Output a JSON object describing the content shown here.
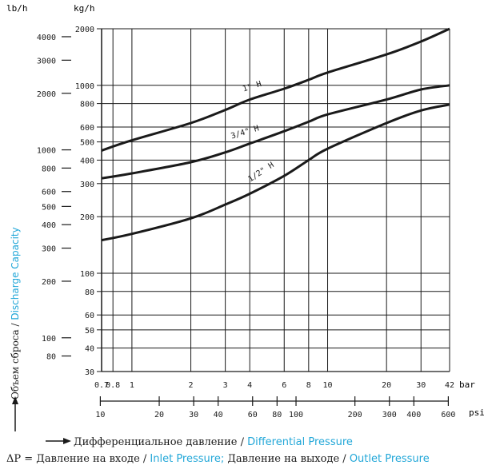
{
  "chart_data": {
    "type": "line",
    "title": "",
    "x_scale": "log",
    "y_scale": "log",
    "xlim": [
      0.7,
      42
    ],
    "ylim": [
      30,
      2000
    ],
    "grid": true,
    "unit_labels": {
      "y_left": "lb/h",
      "y_right": "kg/h",
      "x_top": "bar",
      "x_bottom": "psi"
    },
    "y_kg_ticks": [
      "2000",
      "1000",
      "800",
      "600",
      "500",
      "400",
      "300",
      "200",
      "100",
      "80",
      "60",
      "50",
      "40",
      "30"
    ],
    "y_kg_values": [
      2000,
      1000,
      800,
      600,
      500,
      400,
      300,
      200,
      100,
      80,
      60,
      50,
      40,
      30
    ],
    "y_lb_ticks": [
      "4000",
      "3000",
      "2000",
      "1000",
      "800",
      "600",
      "500",
      "400",
      "300",
      "200",
      "100",
      "80"
    ],
    "y_lb_values": [
      4000,
      3000,
      2000,
      1000,
      800,
      600,
      500,
      400,
      300,
      200,
      100,
      80
    ],
    "x_bar_ticks": [
      "0.7",
      "0.8",
      "1",
      "2",
      "3",
      "4",
      "6",
      "8",
      "10",
      "20",
      "30",
      "42"
    ],
    "x_bar_values": [
      0.7,
      0.8,
      1,
      2,
      3,
      4,
      6,
      8,
      10,
      20,
      30,
      42
    ],
    "x_psi_ticks": [
      "10",
      "20",
      "30",
      "40",
      "60",
      "80",
      "100",
      "200",
      "300",
      "400",
      "600"
    ],
    "x_psi_values": [
      10,
      20,
      30,
      40,
      60,
      80,
      100,
      200,
      300,
      400,
      600
    ],
    "series": [
      {
        "name": "1\" H",
        "x": [
          0.7,
          1,
          2,
          3,
          4,
          6,
          8,
          10,
          20,
          30,
          42
        ],
        "y": [
          450,
          510,
          630,
          740,
          840,
          960,
          1070,
          1170,
          1460,
          1710,
          2000
        ]
      },
      {
        "name": "3/4\" H",
        "x": [
          0.7,
          1,
          2,
          3,
          4,
          6,
          8,
          10,
          20,
          30,
          42
        ],
        "y": [
          320,
          340,
          390,
          440,
          490,
          570,
          640,
          700,
          840,
          950,
          1000
        ]
      },
      {
        "name": "1/2\" H",
        "x": [
          0.7,
          1,
          2,
          3,
          4,
          6,
          8,
          10,
          20,
          30,
          42
        ],
        "y": [
          150,
          162,
          196,
          232,
          265,
          330,
          400,
          460,
          630,
          735,
          790
        ]
      }
    ],
    "ylabel_ru": "Объем сброса",
    "ylabel_sep": " / ",
    "ylabel_en": "Discharge Capacity",
    "xlabel_ru": "Дифференциальное давление",
    "xlabel_sep": " / ",
    "xlabel_en": "Differential Pressure",
    "dp_prefix": "ΔP = Давление на входе / ",
    "dp_inlet_en": "Inlet Pressure;",
    "dp_mid": " Давление на выходе / ",
    "dp_outlet_en": "Outlet Pressure"
  },
  "colors": {
    "accent": "#22a7d8",
    "ink": "#1a1a1a"
  }
}
